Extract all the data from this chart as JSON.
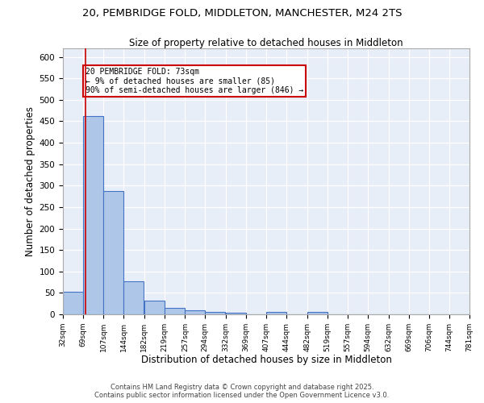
{
  "title_line1": "20, PEMBRIDGE FOLD, MIDDLETON, MANCHESTER, M24 2TS",
  "title_line2": "Size of property relative to detached houses in Middleton",
  "xlabel": "Distribution of detached houses by size in Middleton",
  "ylabel": "Number of detached properties",
  "bin_labels": [
    "32sqm",
    "69sqm",
    "107sqm",
    "144sqm",
    "182sqm",
    "219sqm",
    "257sqm",
    "294sqm",
    "332sqm",
    "369sqm",
    "407sqm",
    "444sqm",
    "482sqm",
    "519sqm",
    "557sqm",
    "594sqm",
    "632sqm",
    "669sqm",
    "706sqm",
    "744sqm",
    "781sqm"
  ],
  "bin_edges": [
    32,
    69,
    107,
    144,
    182,
    219,
    257,
    294,
    332,
    369,
    407,
    444,
    482,
    519,
    557,
    594,
    632,
    669,
    706,
    744,
    781
  ],
  "bar_heights": [
    52,
    462,
    287,
    77,
    32,
    15,
    9,
    5,
    4,
    0,
    5,
    0,
    5,
    0,
    0,
    0,
    0,
    0,
    0,
    0
  ],
  "bar_color": "#aec6e8",
  "bar_edge_color": "#4472c4",
  "bg_color": "#e8eef8",
  "grid_color": "#ffffff",
  "red_line_x": 73,
  "annotation_text": "20 PEMBRIDGE FOLD: 73sqm\n← 9% of detached houses are smaller (85)\n90% of semi-detached houses are larger (846) →",
  "annotation_box_color": "#ffffff",
  "annotation_border_color": "#cc0000",
  "ylim": [
    0,
    620
  ],
  "yticks": [
    0,
    50,
    100,
    150,
    200,
    250,
    300,
    350,
    400,
    450,
    500,
    550,
    600
  ],
  "footer_line1": "Contains HM Land Registry data © Crown copyright and database right 2025.",
  "footer_line2": "Contains public sector information licensed under the Open Government Licence v3.0."
}
